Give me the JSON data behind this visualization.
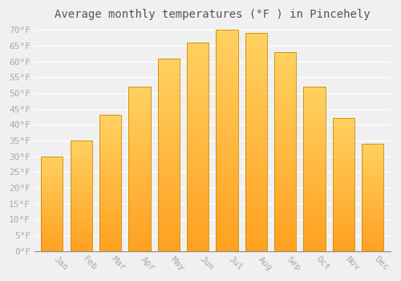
{
  "title": "Average monthly temperatures (°F ) in Pincehely",
  "months": [
    "Jan",
    "Feb",
    "Mar",
    "Apr",
    "May",
    "Jun",
    "Jul",
    "Aug",
    "Sep",
    "Oct",
    "Nov",
    "Dec"
  ],
  "values": [
    30,
    35,
    43,
    52,
    61,
    66,
    70,
    69,
    63,
    52,
    42,
    34
  ],
  "bar_color_top": "#FFD060",
  "bar_color_bottom": "#FFA020",
  "bar_edge_color": "#CC8800",
  "background_color": "#F0F0F0",
  "plot_bg_color": "#F0F0F0",
  "grid_color": "#FFFFFF",
  "tick_color": "#AAAAAA",
  "title_color": "#555555",
  "ylim": [
    0,
    70
  ],
  "ytick_step": 5,
  "title_fontsize": 10,
  "tick_fontsize": 8,
  "ylabel_suffix": "°F"
}
